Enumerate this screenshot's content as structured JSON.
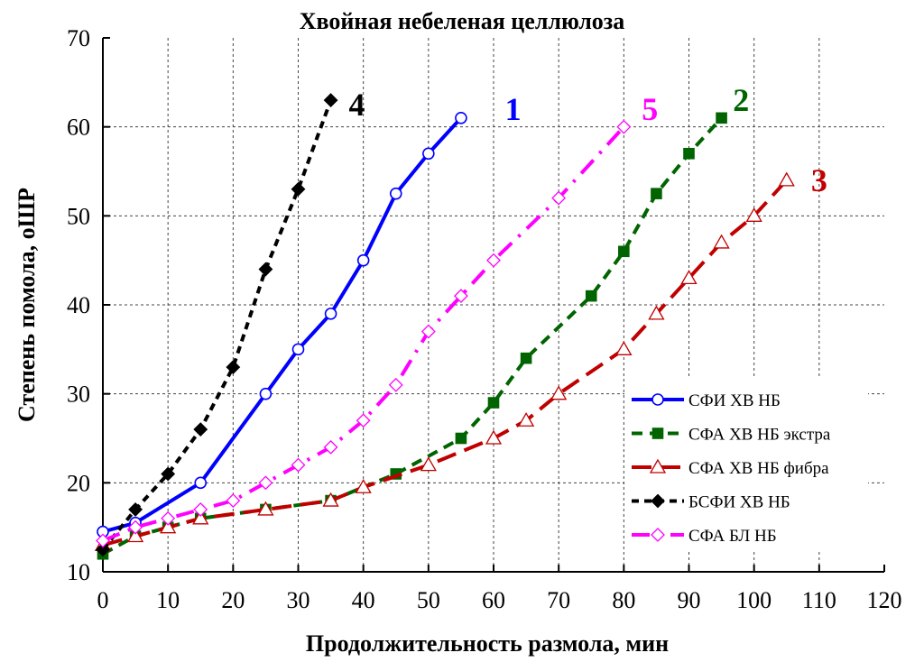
{
  "chart_data": {
    "type": "line",
    "title": "Хвойная небеленая целлюлоза",
    "xlabel": "Продолжительность размола, мин",
    "ylabel": "Степень помола, оШР",
    "xlim": [
      0,
      120
    ],
    "ylim": [
      10,
      70
    ],
    "xticks": [
      0,
      10,
      20,
      30,
      40,
      50,
      60,
      70,
      80,
      90,
      100,
      110,
      120
    ],
    "yticks": [
      10,
      20,
      30,
      40,
      50,
      60,
      70
    ],
    "grid": true,
    "legend_position": "bottom-right",
    "series": [
      {
        "name": "СФИ ХВ НБ",
        "label": "1",
        "color": "#0000ff",
        "dash": "solid",
        "marker": "circle-open",
        "x": [
          0,
          5,
          15,
          25,
          30,
          35,
          40,
          45,
          50,
          55
        ],
        "y": [
          14.5,
          15.5,
          20,
          30,
          35,
          39,
          45,
          52.5,
          57,
          61
        ],
        "annotation": {
          "text": "1",
          "x": 63,
          "y": 62
        }
      },
      {
        "name": "СФА ХВ НБ экстра",
        "label": "2",
        "color": "#006400",
        "dash": "dashed",
        "marker": "square-filled",
        "x": [
          0,
          5,
          10,
          15,
          25,
          35,
          45,
          55,
          60,
          65,
          75,
          80,
          85,
          90,
          95
        ],
        "y": [
          12,
          14,
          15,
          16,
          17,
          18,
          21,
          25,
          29,
          34,
          41,
          46,
          52.5,
          57,
          61
        ],
        "annotation": {
          "text": "2",
          "x": 98,
          "y": 63
        }
      },
      {
        "name": "СФА ХВ НБ фибра",
        "label": "3",
        "color": "#c00000",
        "dash": "long-dash",
        "marker": "triangle-open",
        "x": [
          0,
          5,
          10,
          15,
          25,
          35,
          40,
          50,
          60,
          65,
          70,
          80,
          85,
          90,
          95,
          100,
          105
        ],
        "y": [
          13,
          14,
          15,
          16,
          17,
          18,
          19.5,
          22,
          25,
          27,
          30,
          35,
          39,
          43,
          47,
          50,
          54
        ],
        "annotation": {
          "text": "3",
          "x": 110,
          "y": 54
        }
      },
      {
        "name": "БСФИ ХВ НБ",
        "label": "4",
        "color": "#000000",
        "dash": "short-dash",
        "marker": "diamond-filled",
        "x": [
          0,
          5,
          10,
          15,
          20,
          25,
          30,
          35
        ],
        "y": [
          12.5,
          17,
          21,
          26,
          33,
          44,
          53,
          63
        ],
        "annotation": {
          "text": "4",
          "x": 39,
          "y": 62.5
        }
      },
      {
        "name": "СФА БЛ НБ",
        "label": "5",
        "color": "#ff00ff",
        "dash": "dash-dot",
        "marker": "diamond-open",
        "x": [
          0,
          5,
          10,
          15,
          20,
          25,
          30,
          35,
          40,
          45,
          50,
          55,
          60,
          70,
          80
        ],
        "y": [
          13.5,
          15,
          16,
          17,
          18,
          20,
          22,
          24,
          27,
          31,
          37,
          41,
          45,
          52,
          60
        ],
        "annotation": {
          "text": "5",
          "x": 84,
          "y": 62
        }
      }
    ]
  }
}
